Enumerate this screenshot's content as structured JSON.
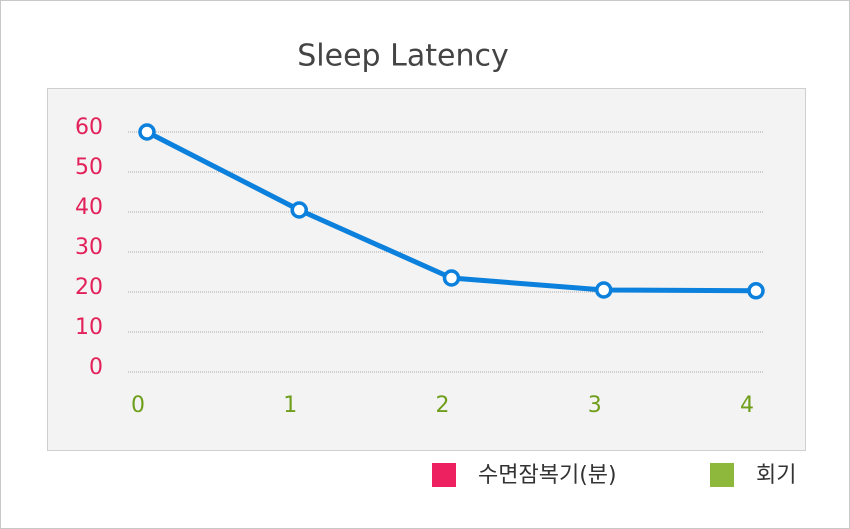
{
  "chart_data": {
    "type": "line",
    "title": "Sleep Latency",
    "x": [
      0,
      1,
      2,
      3,
      4
    ],
    "xlim": [
      0,
      4
    ],
    "xticks": [
      0,
      1,
      2,
      3,
      4
    ],
    "ylim": [
      0,
      60
    ],
    "yticks": [
      0,
      10,
      20,
      30,
      40,
      50,
      60
    ],
    "grid": true,
    "y_tick_color": "#e2215b",
    "x_tick_color": "#6f9e1b",
    "series": [
      {
        "color": "#0b80dc",
        "values": [
          60,
          40.5,
          23.5,
          20.5,
          20.3
        ]
      }
    ],
    "legend": [
      {
        "name": "수면잠복기(분)",
        "color": "#ee2160"
      },
      {
        "name": "회기",
        "color": "#8db83b"
      }
    ]
  }
}
